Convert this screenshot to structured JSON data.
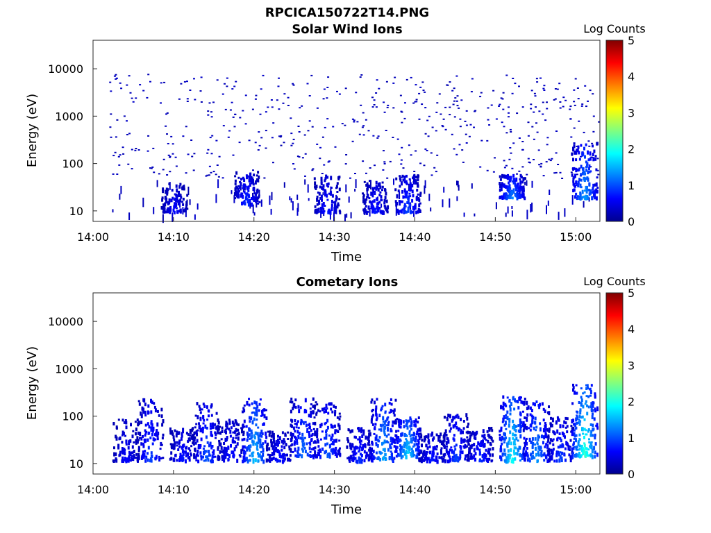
{
  "figure": {
    "title": "RPCICA150722T14.PNG"
  },
  "colors": {
    "colormap": [
      "#00008f",
      "#0000ff",
      "#0080ff",
      "#00ffff",
      "#80ff80",
      "#ffff00",
      "#ff8000",
      "#ff0000",
      "#800000"
    ],
    "axis": "#262626"
  },
  "chart_data": [
    {
      "type": "heatmap",
      "title": "Solar Wind Ions",
      "xlabel": "Time",
      "ylabel": "Energy (eV)",
      "x_ticks": [
        "14:00",
        "14:10",
        "14:20",
        "14:30",
        "14:40",
        "14:50",
        "15:00"
      ],
      "x_range": [
        "14:00",
        "15:03"
      ],
      "y_scale": "log",
      "y_ticks": [
        "10",
        "100",
        "1000",
        "10000"
      ],
      "y_range": [
        6,
        40000
      ],
      "colorbar": {
        "label": "Log Counts",
        "range": [
          0,
          5
        ],
        "ticks": [
          "0",
          "1",
          "2",
          "3",
          "4",
          "5"
        ]
      },
      "bursts": [
        {
          "time": "14:10",
          "emin": 10,
          "emax": 40,
          "level": 0.6
        },
        {
          "time": "14:19",
          "emin": 15,
          "emax": 70,
          "level": 0.8
        },
        {
          "time": "14:29",
          "emin": 10,
          "emax": 60,
          "level": 0.7
        },
        {
          "time": "14:35",
          "emin": 10,
          "emax": 50,
          "level": 0.7
        },
        {
          "time": "14:39",
          "emin": 10,
          "emax": 60,
          "level": 0.9
        },
        {
          "time": "14:52",
          "emin": 20,
          "emax": 60,
          "level": 1.2
        },
        {
          "time": "15:01",
          "emin": 20,
          "emax": 300,
          "level": 1.3
        }
      ],
      "background": {
        "emin": 50,
        "emax": 8000,
        "level": 0.3
      }
    },
    {
      "type": "heatmap",
      "title": "Cometary Ions",
      "xlabel": "Time",
      "ylabel": "Energy (eV)",
      "x_ticks": [
        "14:00",
        "14:10",
        "14:20",
        "14:30",
        "14:40",
        "14:50",
        "15:00"
      ],
      "x_range": [
        "14:00",
        "15:03"
      ],
      "y_scale": "log",
      "y_ticks": [
        "10",
        "100",
        "1000",
        "10000"
      ],
      "y_range": [
        6,
        40000
      ],
      "colorbar": {
        "label": "Log Counts",
        "range": [
          0,
          5
        ],
        "ticks": [
          "0",
          "1",
          "2",
          "3",
          "4",
          "5"
        ]
      },
      "bursts": [
        {
          "time": "14:04",
          "emin": 12,
          "emax": 90,
          "level": 0.6
        },
        {
          "time": "14:07",
          "emin": 12,
          "emax": 250,
          "level": 0.9
        },
        {
          "time": "14:11",
          "emin": 12,
          "emax": 60,
          "level": 0.7
        },
        {
          "time": "14:14",
          "emin": 12,
          "emax": 200,
          "level": 1.0
        },
        {
          "time": "14:17",
          "emin": 12,
          "emax": 90,
          "level": 0.7
        },
        {
          "time": "14:20",
          "emin": 12,
          "emax": 250,
          "level": 1.5
        },
        {
          "time": "14:23",
          "emin": 12,
          "emax": 50,
          "level": 0.7
        },
        {
          "time": "14:26",
          "emin": 15,
          "emax": 250,
          "level": 1.1
        },
        {
          "time": "14:29",
          "emin": 15,
          "emax": 200,
          "level": 1.0
        },
        {
          "time": "14:33",
          "emin": 12,
          "emax": 60,
          "level": 0.8
        },
        {
          "time": "14:36",
          "emin": 12,
          "emax": 250,
          "level": 1.4
        },
        {
          "time": "14:39",
          "emin": 15,
          "emax": 100,
          "level": 1.6
        },
        {
          "time": "14:42",
          "emin": 12,
          "emax": 50,
          "level": 0.7
        },
        {
          "time": "14:45",
          "emin": 12,
          "emax": 120,
          "level": 0.9
        },
        {
          "time": "14:48",
          "emin": 12,
          "emax": 60,
          "level": 0.8
        },
        {
          "time": "14:52",
          "emin": 12,
          "emax": 300,
          "level": 1.8
        },
        {
          "time": "14:55",
          "emin": 12,
          "emax": 250,
          "level": 1.3
        },
        {
          "time": "14:58",
          "emin": 12,
          "emax": 100,
          "level": 0.9
        },
        {
          "time": "15:01",
          "emin": 15,
          "emax": 500,
          "level": 2.0
        }
      ]
    }
  ]
}
